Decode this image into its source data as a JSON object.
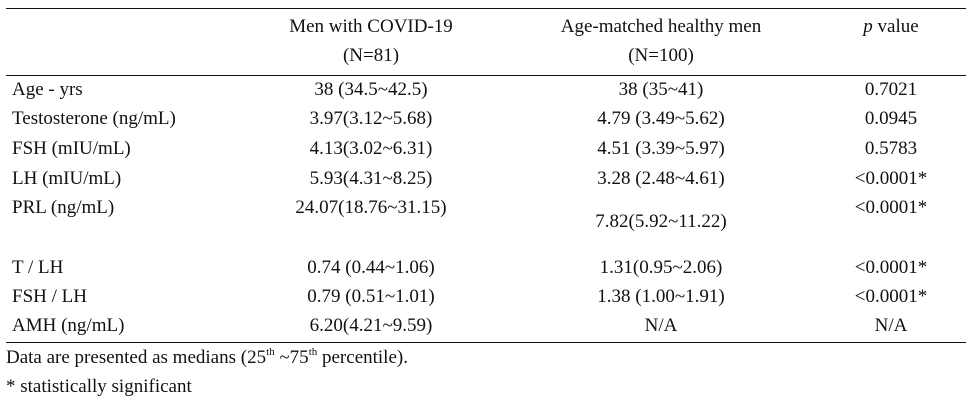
{
  "table": {
    "headers": {
      "covid_line1": "Men with COVID-19",
      "covid_line2": "(N=81)",
      "healthy_line1": "Age-matched healthy men",
      "healthy_line2": "(N=100)",
      "p_italic": "p",
      "p_rest": " value"
    },
    "rows": [
      {
        "label": "Age - yrs",
        "covid": "38 (34.5~42.5)",
        "healthy": "38 (35~41)",
        "p": "0.7021"
      },
      {
        "label": "Testosterone (ng/mL)",
        "covid": "3.97(3.12~5.68)",
        "healthy": "4.79 (3.49~5.62)",
        "p": "0.0945"
      },
      {
        "label": "FSH (mIU/mL)",
        "covid": "4.13(3.02~6.31)",
        "healthy": "4.51 (3.39~5.97)",
        "p": "0.5783"
      },
      {
        "label": "LH (mIU/mL)",
        "covid": "5.93(4.31~8.25)",
        "healthy": "3.28 (2.48~4.61)",
        "p": "<0.0001*"
      },
      {
        "label": "PRL (ng/mL)",
        "covid": "24.07(18.76~31.15)",
        "healthy": "7.82(5.92~11.22)",
        "p": "<0.0001*"
      },
      {
        "label": "T / LH",
        "covid": "0.74 (0.44~1.06)",
        "healthy": "1.31(0.95~2.06)",
        "p": "<0.0001*"
      },
      {
        "label": "FSH / LH",
        "covid": "0.79 (0.51~1.01)",
        "healthy": "1.38 (1.00~1.91)",
        "p": "<0.0001*"
      },
      {
        "label": "AMH (ng/mL)",
        "covid": "6.20(4.21~9.59)",
        "healthy": "N/A",
        "p": "N/A"
      }
    ]
  },
  "notes": {
    "line1_a": "Data are presented as medians (25",
    "line1_sup1": "th",
    "line1_b": " ~75",
    "line1_sup2": "th",
    "line1_c": " percentile).",
    "line2": "* statistically significant"
  }
}
